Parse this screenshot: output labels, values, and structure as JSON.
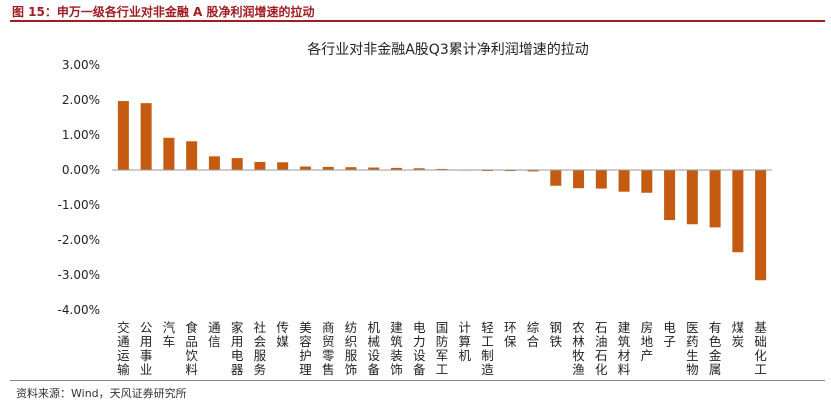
{
  "header": {
    "caption": "图 15：申万一级各行业对非金融 A 股净利润增速的拉动"
  },
  "footer": {
    "source": "资料来源：Wind，天风证券研究所"
  },
  "colors": {
    "bar": "#c55a11",
    "accent": "#a01d23",
    "axis": "#9a9a9a"
  },
  "chart_data": {
    "type": "bar",
    "title": "各行业对非金融A股Q3累计净利润增速的拉动",
    "xlabel": "",
    "ylabel": "",
    "ylim": [
      -4.0,
      3.0
    ],
    "yticks": [
      3.0,
      2.0,
      1.0,
      0.0,
      -1.0,
      -2.0,
      -3.0,
      -4.0
    ],
    "ytick_labels": [
      "3.00%",
      "2.00%",
      "1.00%",
      "0.00%",
      "-1.00%",
      "-2.00%",
      "-3.00%",
      "-4.00%"
    ],
    "grid": false,
    "legend": "none",
    "categories": [
      "交通运输",
      "公用事业",
      "汽车",
      "食品饮料",
      "通信",
      "家用电器",
      "社会服务",
      "传媒",
      "美容护理",
      "商贸零售",
      "纺织服饰",
      "机械设备",
      "建筑装饰",
      "电力设备",
      "国防军工",
      "计算机",
      "轻工制造",
      "环保",
      "综合",
      "钢铁",
      "农林牧渔",
      "石油石化",
      "建筑材料",
      "房地产",
      "电子",
      "医药生物",
      "有色金属",
      "煤炭",
      "基础化工"
    ],
    "values": [
      1.97,
      1.91,
      0.92,
      0.82,
      0.39,
      0.34,
      0.23,
      0.22,
      0.1,
      0.09,
      0.08,
      0.07,
      0.06,
      0.05,
      0.03,
      -0.01,
      -0.03,
      -0.03,
      -0.04,
      -0.45,
      -0.52,
      -0.53,
      -0.62,
      -0.65,
      -1.43,
      -1.55,
      -1.64,
      -2.35,
      -3.15
    ]
  }
}
